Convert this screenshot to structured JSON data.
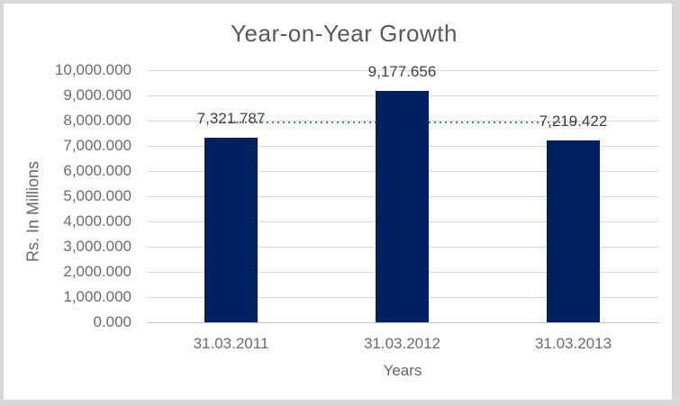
{
  "chart_data": {
    "type": "bar",
    "title": "Year-on-Year Growth",
    "xlabel": "Years",
    "ylabel": "Rs. In Millions",
    "categories": [
      "31.03.2011",
      "31.03.2012",
      "31.03.2013"
    ],
    "values": [
      7321.787,
      9177.656,
      7219.422
    ],
    "data_labels": [
      "7,321.787",
      "9,177.656",
      "7,219.422"
    ],
    "ylim": [
      0,
      10000
    ],
    "ytick_step": 1000,
    "ytick_labels": [
      "0.000",
      "1,000.000",
      "2,000.000",
      "3,000.000",
      "4,000.000",
      "5,000.000",
      "6,000.000",
      "7,000.000",
      "8,000.000",
      "9,000.000",
      "10,000.000"
    ],
    "grid": true,
    "legend": "none",
    "trendline": {
      "type": "linear",
      "style": "dotted",
      "approx_value": 7940,
      "span_categories": [
        "31.03.2011",
        "31.03.2013"
      ]
    },
    "colors": {
      "bar": "#002060",
      "trendline": "#4a7ebb",
      "gridline": "#d9d9d9",
      "axis_line": "#bfbfbf",
      "tick_text": "#6b6b6b",
      "data_label_text": "#404040",
      "title_text": "#595959",
      "frame": "#d8d8d8",
      "canvas": "#ffffff"
    }
  }
}
